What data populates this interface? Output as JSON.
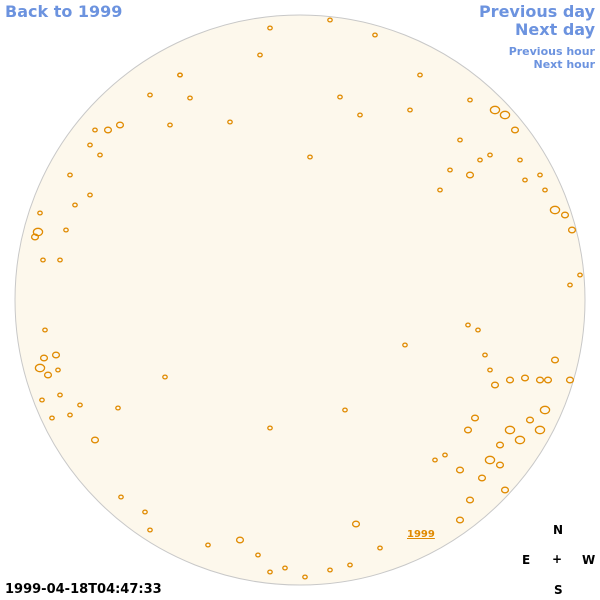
{
  "nav": {
    "back": "Back to 1999",
    "prev_day": "Previous day",
    "next_day": "Next day",
    "prev_hour": "Previous hour",
    "next_hour": "Next hour"
  },
  "timestamp": "1999-04-18T04:47:33",
  "marker_label": "1999",
  "compass": {
    "north": "N",
    "east": "E",
    "west": "W",
    "south": "S",
    "center": "+"
  },
  "colors": {
    "disc_fill": "#fdf8ec",
    "disc_outline": "#c8c8c8",
    "contour": "#e08a00",
    "link": "#6c93df"
  },
  "features": [
    [
      35,
      237,
      2
    ],
    [
      38,
      232,
      3
    ],
    [
      40,
      213,
      1
    ],
    [
      43,
      260,
      1
    ],
    [
      45,
      330,
      1
    ],
    [
      44,
      358,
      2
    ],
    [
      40,
      368,
      3
    ],
    [
      48,
      375,
      2
    ],
    [
      56,
      355,
      2
    ],
    [
      58,
      370,
      1
    ],
    [
      42,
      400,
      1
    ],
    [
      52,
      418,
      1
    ],
    [
      60,
      395,
      1
    ],
    [
      70,
      415,
      1
    ],
    [
      80,
      405,
      1
    ],
    [
      95,
      440,
      2
    ],
    [
      118,
      408,
      1
    ],
    [
      121,
      497,
      1
    ],
    [
      145,
      512,
      1
    ],
    [
      150,
      530,
      1
    ],
    [
      208,
      545,
      1
    ],
    [
      240,
      540,
      2
    ],
    [
      258,
      555,
      1
    ],
    [
      270,
      572,
      1
    ],
    [
      285,
      568,
      1
    ],
    [
      305,
      577,
      1
    ],
    [
      330,
      570,
      1
    ],
    [
      350,
      565,
      1
    ],
    [
      356,
      524,
      2
    ],
    [
      380,
      548,
      1
    ],
    [
      410,
      565,
      1
    ],
    [
      440,
      560,
      1
    ],
    [
      460,
      520,
      2
    ],
    [
      470,
      500,
      2
    ],
    [
      482,
      478,
      2
    ],
    [
      490,
      460,
      3
    ],
    [
      500,
      445,
      2
    ],
    [
      510,
      430,
      3
    ],
    [
      520,
      440,
      3
    ],
    [
      530,
      420,
      2
    ],
    [
      540,
      430,
      3
    ],
    [
      545,
      410,
      3
    ],
    [
      548,
      380,
      2
    ],
    [
      555,
      360,
      2
    ],
    [
      570,
      380,
      2
    ],
    [
      540,
      380,
      2
    ],
    [
      525,
      378,
      2
    ],
    [
      510,
      380,
      2
    ],
    [
      495,
      385,
      2
    ],
    [
      490,
      370,
      1
    ],
    [
      485,
      355,
      1
    ],
    [
      478,
      330,
      1
    ],
    [
      468,
      325,
      1
    ],
    [
      475,
      418,
      2
    ],
    [
      468,
      430,
      2
    ],
    [
      460,
      470,
      2
    ],
    [
      445,
      455,
      1
    ],
    [
      435,
      460,
      1
    ],
    [
      500,
      465,
      2
    ],
    [
      505,
      490,
      2
    ],
    [
      470,
      175,
      2
    ],
    [
      480,
      160,
      1
    ],
    [
      490,
      155,
      1
    ],
    [
      495,
      110,
      3
    ],
    [
      505,
      115,
      3
    ],
    [
      515,
      130,
      2
    ],
    [
      520,
      160,
      1
    ],
    [
      525,
      180,
      1
    ],
    [
      540,
      175,
      1
    ],
    [
      545,
      190,
      1
    ],
    [
      555,
      210,
      3
    ],
    [
      565,
      215,
      2
    ],
    [
      572,
      230,
      2
    ],
    [
      570,
      285,
      1
    ],
    [
      580,
      275,
      1
    ],
    [
      470,
      100,
      1
    ],
    [
      460,
      140,
      1
    ],
    [
      450,
      170,
      1
    ],
    [
      440,
      190,
      1
    ],
    [
      420,
      75,
      1
    ],
    [
      340,
      97,
      1
    ],
    [
      310,
      157,
      1
    ],
    [
      260,
      55,
      1
    ],
    [
      230,
      122,
      1
    ],
    [
      190,
      98,
      1
    ],
    [
      180,
      75,
      1
    ],
    [
      170,
      125,
      1
    ],
    [
      150,
      95,
      1
    ],
    [
      120,
      125,
      2
    ],
    [
      108,
      130,
      2
    ],
    [
      95,
      130,
      1
    ],
    [
      90,
      145,
      1
    ],
    [
      100,
      155,
      1
    ],
    [
      70,
      175,
      1
    ],
    [
      75,
      205,
      1
    ],
    [
      90,
      195,
      1
    ],
    [
      66,
      230,
      1
    ],
    [
      60,
      260,
      1
    ],
    [
      405,
      345,
      1
    ],
    [
      345,
      410,
      1
    ],
    [
      270,
      428,
      1
    ],
    [
      165,
      377,
      1
    ],
    [
      180,
      75,
      1
    ],
    [
      270,
      28,
      1
    ],
    [
      330,
      20,
      1
    ],
    [
      375,
      35,
      1
    ],
    [
      410,
      110,
      1
    ],
    [
      360,
      115,
      1
    ]
  ]
}
